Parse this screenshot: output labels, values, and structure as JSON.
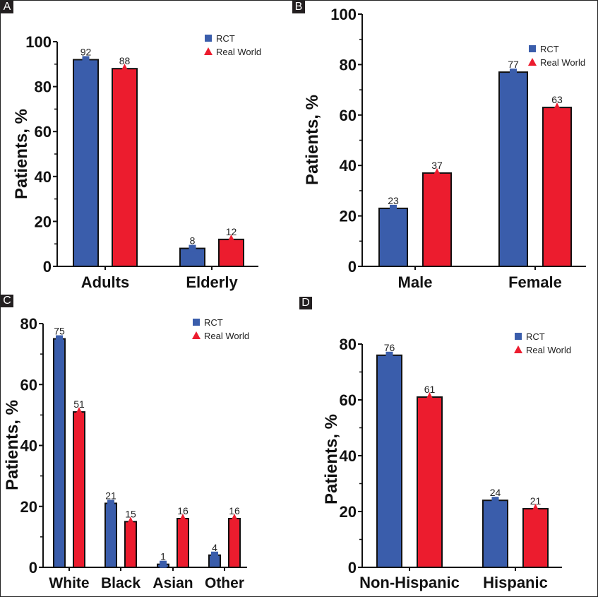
{
  "colors": {
    "rct": "#3a5dab",
    "real_world": "#ec1c2e",
    "axis": "#111111"
  },
  "legend": {
    "rct": "RCT",
    "real_world": "Real World"
  },
  "chart_data": [
    {
      "panel": "A",
      "type": "bar",
      "ylabel": "Patients, %",
      "xlabel": "",
      "ylim": [
        0,
        100
      ],
      "yticks": [
        0,
        20,
        40,
        60,
        80,
        100
      ],
      "categories": [
        "Adults",
        "Elderly"
      ],
      "series": [
        {
          "name": "RCT",
          "marker": "square",
          "values": [
            92,
            8
          ]
        },
        {
          "name": "Real World",
          "marker": "triangle",
          "values": [
            88,
            12
          ]
        }
      ],
      "legend_position": "top-right",
      "grid": false
    },
    {
      "panel": "B",
      "type": "bar",
      "ylabel": "Patients, %",
      "xlabel": "",
      "ylim": [
        0,
        100
      ],
      "yticks": [
        0,
        20,
        40,
        60,
        80,
        100
      ],
      "categories": [
        "Male",
        "Female"
      ],
      "series": [
        {
          "name": "RCT",
          "marker": "square",
          "values": [
            23,
            77
          ]
        },
        {
          "name": "Real World",
          "marker": "triangle",
          "values": [
            37,
            63
          ]
        }
      ],
      "legend_position": "top-right",
      "grid": false
    },
    {
      "panel": "C",
      "type": "bar",
      "ylabel": "Patients, %",
      "xlabel": "",
      "ylim": [
        0,
        80
      ],
      "yticks": [
        0,
        20,
        40,
        60,
        80
      ],
      "categories": [
        "White",
        "Black",
        "Asian",
        "Other"
      ],
      "series": [
        {
          "name": "RCT",
          "marker": "square",
          "values": [
            75,
            21,
            1,
            4
          ]
        },
        {
          "name": "Real World",
          "marker": "triangle",
          "values": [
            51,
            15,
            16,
            16
          ]
        }
      ],
      "legend_position": "top-right",
      "grid": false
    },
    {
      "panel": "D",
      "type": "bar",
      "ylabel": "Patients, %",
      "xlabel": "",
      "ylim": [
        0,
        80
      ],
      "yticks": [
        0,
        20,
        40,
        60,
        80
      ],
      "categories": [
        "Non-Hispanic",
        "Hispanic"
      ],
      "series": [
        {
          "name": "RCT",
          "marker": "square",
          "values": [
            76,
            24
          ]
        },
        {
          "name": "Real World",
          "marker": "triangle",
          "values": [
            61,
            21
          ]
        }
      ],
      "legend_position": "top-right",
      "grid": false
    }
  ]
}
